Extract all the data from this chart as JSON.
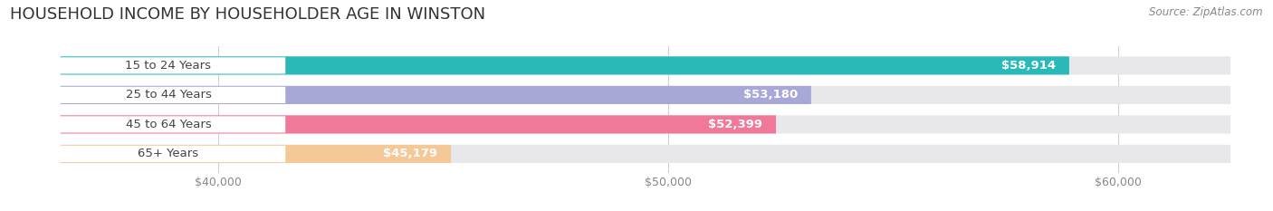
{
  "title": "HOUSEHOLD INCOME BY HOUSEHOLDER AGE IN WINSTON",
  "source": "Source: ZipAtlas.com",
  "categories": [
    "15 to 24 Years",
    "25 to 44 Years",
    "45 to 64 Years",
    "65+ Years"
  ],
  "values": [
    58914,
    53180,
    52399,
    45179
  ],
  "bar_colors": [
    "#2ab8b8",
    "#a8a8d8",
    "#f07898",
    "#f5c898"
  ],
  "bar_labels": [
    "$58,914",
    "$53,180",
    "$52,399",
    "$45,179"
  ],
  "x_min": 36500,
  "x_max": 62500,
  "x_ticks": [
    40000,
    50000,
    60000
  ],
  "x_tick_labels": [
    "$40,000",
    "$50,000",
    "$60,000"
  ],
  "background_color": "#ffffff",
  "bar_bg_color": "#e8e8ea",
  "title_fontsize": 13,
  "label_fontsize": 9.5,
  "tick_fontsize": 9,
  "source_fontsize": 8.5
}
